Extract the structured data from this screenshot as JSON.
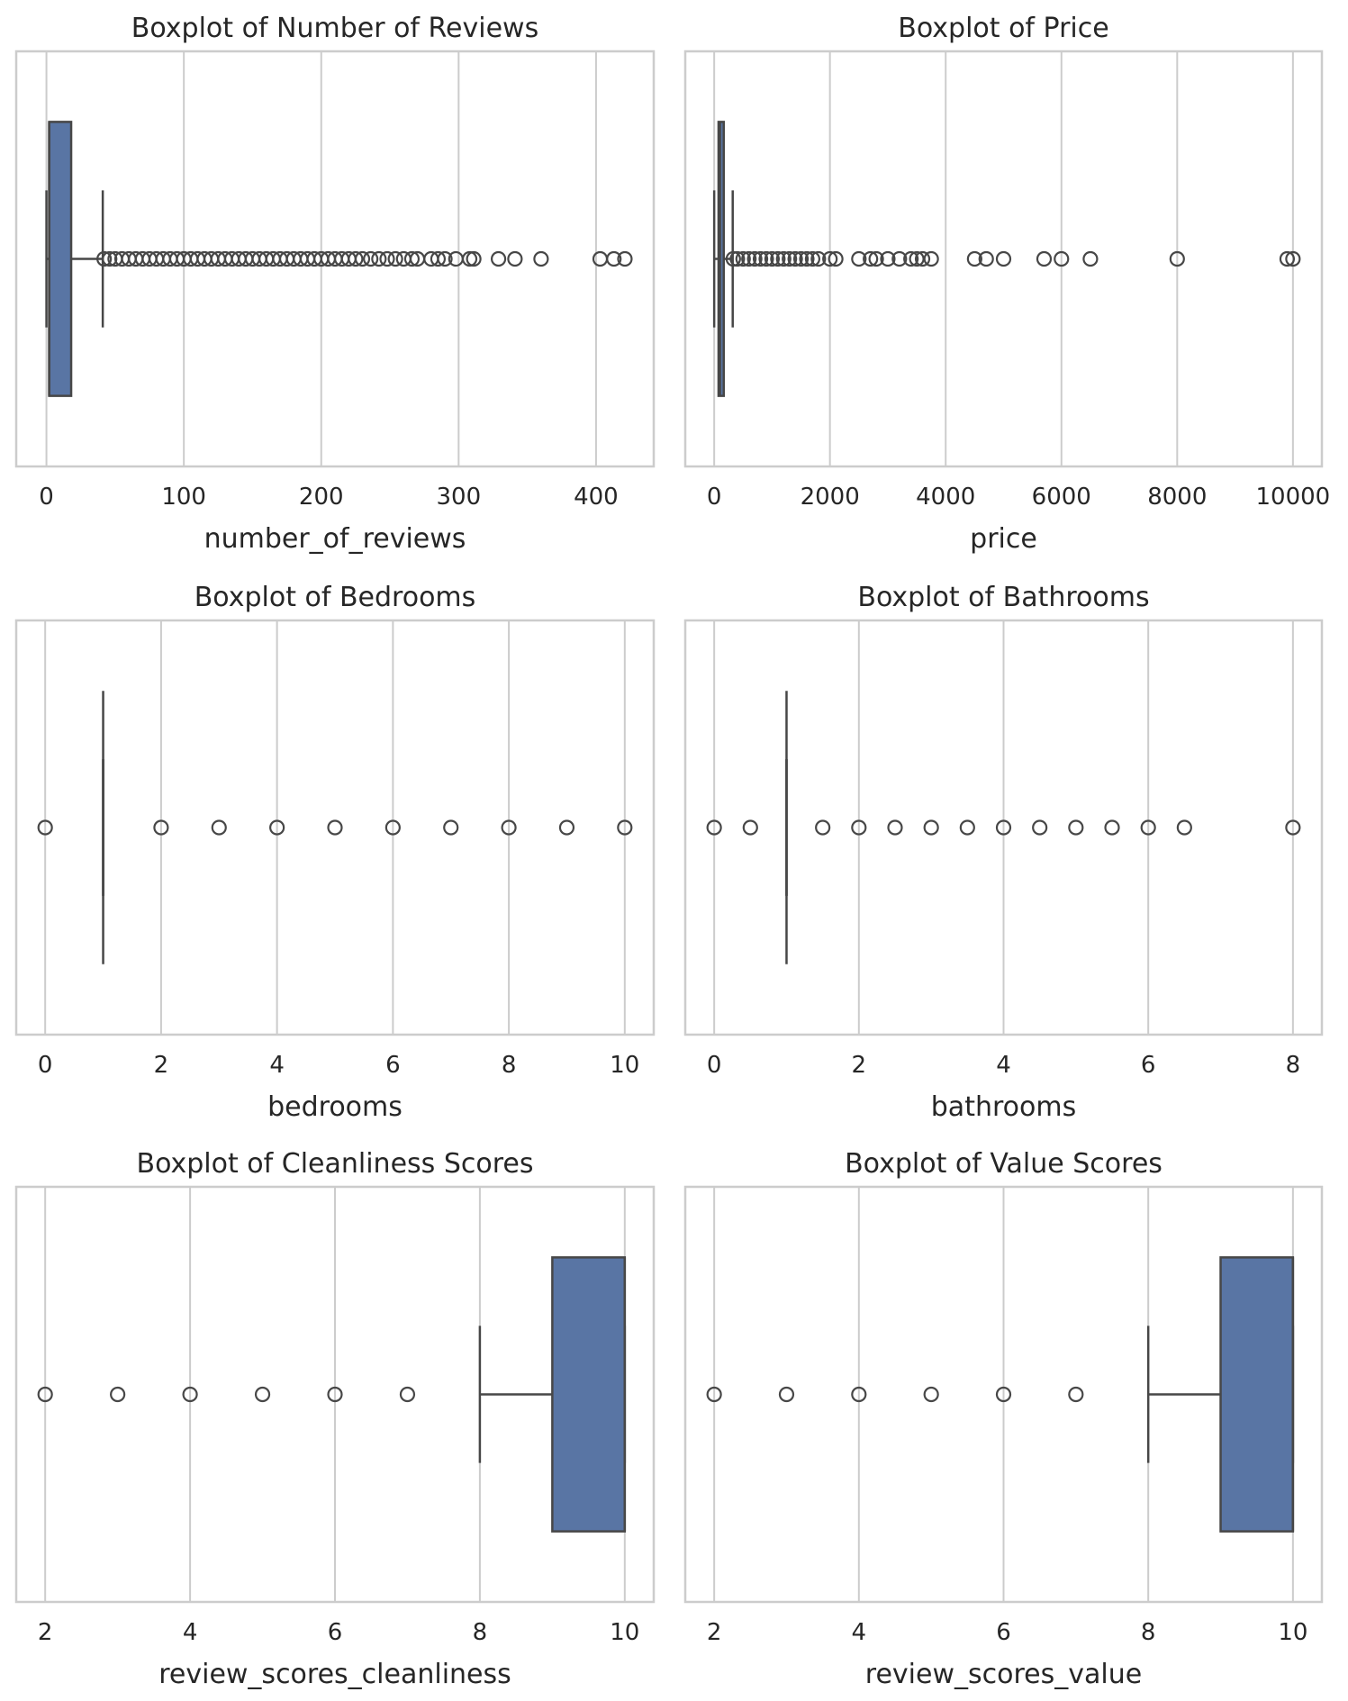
{
  "chart_data": [
    {
      "type": "boxplot",
      "title": "Boxplot of Number of Reviews",
      "xlabel": "number_of_reviews",
      "xlim": [
        -22,
        442
      ],
      "ticks": [
        0,
        100,
        200,
        300,
        400
      ],
      "grid": true,
      "stats": {
        "whislo": 0,
        "q1": 2,
        "med": 2,
        "q3": 18,
        "whishi": 41
      },
      "fliers": [
        42,
        46,
        50,
        55,
        60,
        65,
        70,
        75,
        80,
        85,
        90,
        95,
        100,
        105,
        110,
        115,
        120,
        125,
        130,
        135,
        140,
        145,
        150,
        155,
        160,
        165,
        170,
        175,
        180,
        185,
        190,
        195,
        200,
        205,
        210,
        215,
        220,
        225,
        230,
        236,
        242,
        248,
        254,
        260,
        266,
        270,
        280,
        285,
        290,
        298,
        308,
        311,
        329,
        341,
        360,
        403,
        413,
        421
      ]
    },
    {
      "type": "boxplot",
      "title": "Boxplot of Price",
      "xlabel": "price",
      "xlim": [
        -500,
        10500
      ],
      "ticks": [
        0,
        2000,
        4000,
        6000,
        8000,
        10000
      ],
      "grid": true,
      "stats": {
        "whislo": 0,
        "q1": 75,
        "med": 100,
        "q3": 165,
        "whishi": 320
      },
      "fliers": [
        330,
        400,
        500,
        600,
        700,
        800,
        900,
        1000,
        1100,
        1200,
        1300,
        1400,
        1500,
        1600,
        1700,
        1800,
        2000,
        2100,
        2500,
        2700,
        2800,
        3000,
        3200,
        3400,
        3500,
        3600,
        3750,
        4500,
        4700,
        5000,
        5700,
        6000,
        6500,
        8000,
        9900,
        10000
      ]
    },
    {
      "type": "boxplot",
      "title": "Boxplot of Bedrooms",
      "xlabel": "bedrooms",
      "xlim": [
        -0.5,
        10.5
      ],
      "ticks": [
        0,
        2,
        4,
        6,
        8,
        10
      ],
      "grid": true,
      "stats": {
        "whislo": 1,
        "q1": 1,
        "med": 1,
        "q3": 1,
        "whishi": 1
      },
      "fliers": [
        0,
        2,
        3,
        4,
        5,
        6,
        7,
        8,
        9,
        10
      ]
    },
    {
      "type": "boxplot",
      "title": "Boxplot of Bathrooms",
      "xlabel": "bathrooms",
      "xlim": [
        -0.4,
        8.4
      ],
      "ticks": [
        0,
        2,
        4,
        6,
        8
      ],
      "grid": true,
      "stats": {
        "whislo": 1,
        "q1": 1,
        "med": 1,
        "q3": 1,
        "whishi": 1
      },
      "fliers": [
        0,
        0.5,
        1.5,
        2,
        2.5,
        3,
        3.5,
        4,
        4.5,
        5,
        5.5,
        6,
        6.5,
        8
      ]
    },
    {
      "type": "boxplot",
      "title": "Boxplot of Cleanliness Scores",
      "xlabel": "review_scores_cleanliness",
      "xlim": [
        1.6,
        10.4
      ],
      "ticks": [
        2,
        4,
        6,
        8,
        10
      ],
      "grid": true,
      "stats": {
        "whislo": 8,
        "q1": 9,
        "med": 10,
        "q3": 10,
        "whishi": 10
      },
      "fliers": [
        2,
        3,
        4,
        5,
        6,
        7
      ]
    },
    {
      "type": "boxplot",
      "title": "Boxplot of Value Scores",
      "xlabel": "review_scores_value",
      "xlim": [
        1.6,
        10.4
      ],
      "ticks": [
        2,
        4,
        6,
        8,
        10
      ],
      "grid": true,
      "stats": {
        "whislo": 8,
        "q1": 9,
        "med": 10,
        "q3": 10,
        "whishi": 10
      },
      "fliers": [
        2,
        3,
        4,
        5,
        6,
        7
      ]
    }
  ],
  "colors": {
    "box": "#5975a4",
    "line": "#474747",
    "grid": "#cccccc",
    "text": "#262626"
  }
}
